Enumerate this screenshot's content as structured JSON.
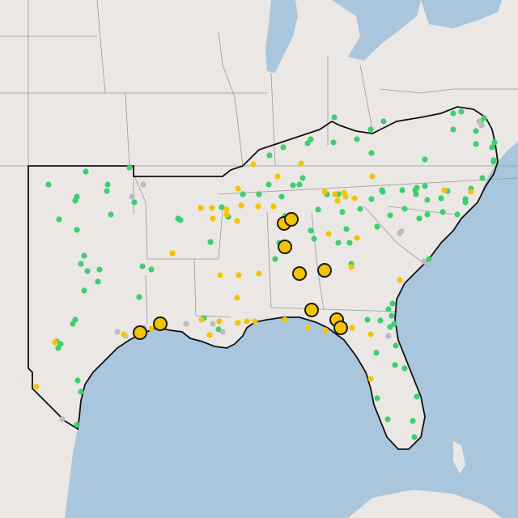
{
  "map": {
    "colors": {
      "water": "#a9c6dd",
      "land": "#ebe7e4",
      "state_border": "#9a9a9a",
      "region_outline": "#111111",
      "green_marker": "#3ecf6e",
      "yellow_marker": "#f5c400",
      "gray_marker": "#b9bcc0",
      "large_marker_fill": "#f5c400",
      "large_marker_stroke": "#1a1a1a"
    },
    "marker_legend": {
      "green": "green-marker",
      "yellow": "yellow-marker",
      "gray": "gray-marker",
      "large": "large-yellow-marker"
    },
    "counts": {
      "large_yellow_markers": 13
    }
  }
}
